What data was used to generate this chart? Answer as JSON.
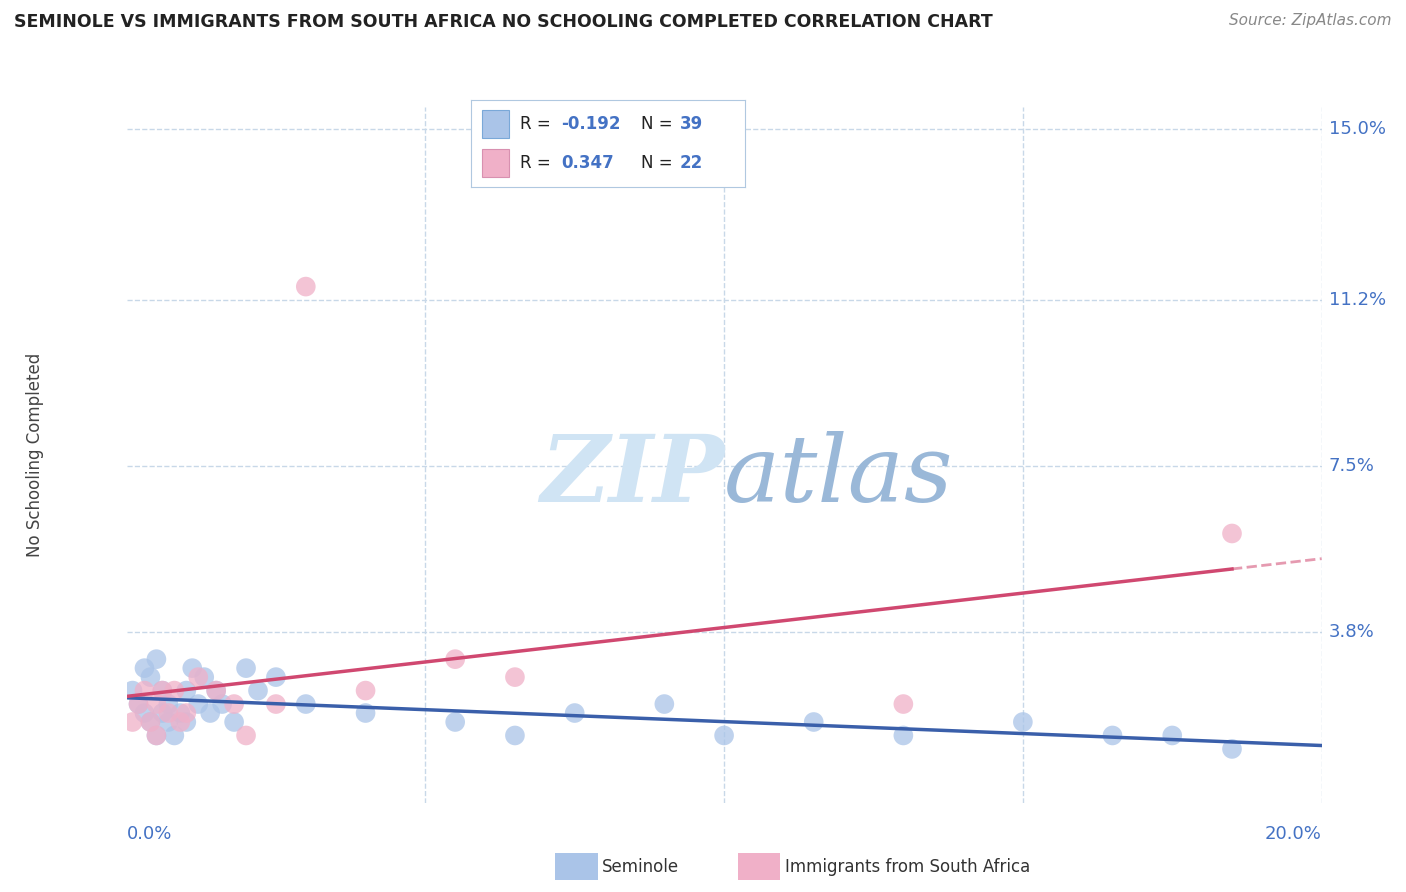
{
  "title": "SEMINOLE VS IMMIGRANTS FROM SOUTH AFRICA NO SCHOOLING COMPLETED CORRELATION CHART",
  "source": "Source: ZipAtlas.com",
  "ylabel": "No Schooling Completed",
  "y_ticks": [
    0.038,
    0.075,
    0.112,
    0.15
  ],
  "y_tick_labels": [
    "3.8%",
    "7.5%",
    "11.2%",
    "15.0%"
  ],
  "x_ticks": [
    0.0,
    0.2
  ],
  "x_tick_labels": [
    "0.0%",
    "20.0%"
  ],
  "xlim": [
    0.0,
    0.2
  ],
  "ylim": [
    0.0,
    0.155
  ],
  "legend1_R": "-0.192",
  "legend1_N": "39",
  "legend2_R": "0.347",
  "legend2_N": "22",
  "seminole_color": "#aac4e8",
  "immigrants_color": "#f0b0c8",
  "trendline_seminole_color": "#3a5faa",
  "trendline_immigrants_color": "#d04870",
  "background_color": "#ffffff",
  "grid_color": "#c8d8e8",
  "watermark_color": "#d0e4f4",
  "seminole_x": [
    0.001,
    0.002,
    0.003,
    0.003,
    0.004,
    0.004,
    0.005,
    0.005,
    0.006,
    0.006,
    0.007,
    0.007,
    0.008,
    0.009,
    0.01,
    0.01,
    0.011,
    0.012,
    0.013,
    0.014,
    0.015,
    0.016,
    0.018,
    0.02,
    0.022,
    0.025,
    0.03,
    0.04,
    0.055,
    0.065,
    0.075,
    0.09,
    0.1,
    0.115,
    0.13,
    0.15,
    0.165,
    0.175,
    0.185
  ],
  "seminole_y": [
    0.025,
    0.022,
    0.03,
    0.02,
    0.028,
    0.018,
    0.032,
    0.015,
    0.025,
    0.02,
    0.022,
    0.018,
    0.015,
    0.02,
    0.025,
    0.018,
    0.03,
    0.022,
    0.028,
    0.02,
    0.025,
    0.022,
    0.018,
    0.03,
    0.025,
    0.028,
    0.022,
    0.02,
    0.018,
    0.015,
    0.02,
    0.022,
    0.015,
    0.018,
    0.015,
    0.018,
    0.015,
    0.015,
    0.012
  ],
  "immigrants_x": [
    0.001,
    0.002,
    0.003,
    0.004,
    0.005,
    0.005,
    0.006,
    0.007,
    0.008,
    0.009,
    0.01,
    0.012,
    0.015,
    0.018,
    0.02,
    0.025,
    0.03,
    0.04,
    0.055,
    0.065,
    0.13,
    0.185
  ],
  "immigrants_y": [
    0.018,
    0.022,
    0.025,
    0.018,
    0.022,
    0.015,
    0.025,
    0.02,
    0.025,
    0.018,
    0.02,
    0.028,
    0.025,
    0.022,
    0.015,
    0.022,
    0.115,
    0.025,
    0.032,
    0.028,
    0.022,
    0.06
  ]
}
